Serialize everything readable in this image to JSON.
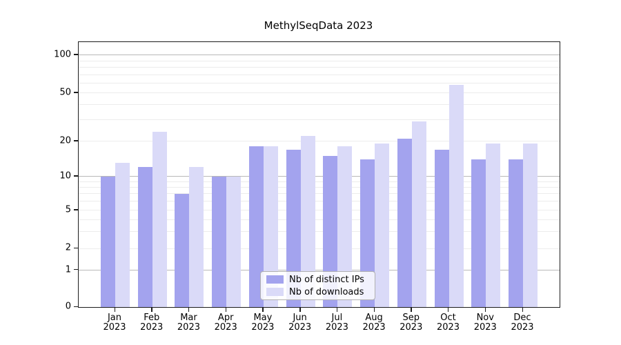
{
  "chart_data": {
    "type": "bar",
    "title": "MethylSeqData 2023",
    "categories": [
      "Jan",
      "Feb",
      "Mar",
      "Apr",
      "May",
      "Jun",
      "Jul",
      "Aug",
      "Sep",
      "Oct",
      "Nov",
      "Dec"
    ],
    "category_year": "2023",
    "series": [
      {
        "name": "Nb of distinct IPs",
        "color": "#a3a3ee",
        "values": [
          10,
          12,
          7,
          10,
          18,
          17,
          15,
          14,
          21,
          17,
          14,
          14
        ]
      },
      {
        "name": "Nb of downloads",
        "color": "#dadaf8",
        "values": [
          13,
          24,
          12,
          10,
          18,
          22,
          18,
          19,
          29,
          58,
          19,
          19
        ]
      }
    ],
    "y_axis": {
      "scale": "symlog",
      "tick_values": [
        0,
        1,
        2,
        5,
        10,
        20,
        50,
        100
      ],
      "tick_labels": [
        "0",
        "1",
        "2",
        "5",
        "10",
        "20",
        "50",
        "100"
      ],
      "range": [
        0,
        112
      ]
    },
    "grid": {
      "on": true,
      "major_lines": [
        1,
        10,
        100
      ],
      "minor_lines": [
        2,
        3,
        4,
        5,
        6,
        7,
        8,
        9,
        20,
        30,
        40,
        50,
        60,
        70,
        80,
        90
      ]
    },
    "legend": {
      "position": "lower center",
      "entries": [
        "Nb of distinct IPs",
        "Nb of downloads"
      ]
    },
    "colors": {
      "background": "#ffffff",
      "axis": "#1a1a1a",
      "grid_major": "#b8b8b8",
      "grid_minor": "#ececec"
    }
  }
}
